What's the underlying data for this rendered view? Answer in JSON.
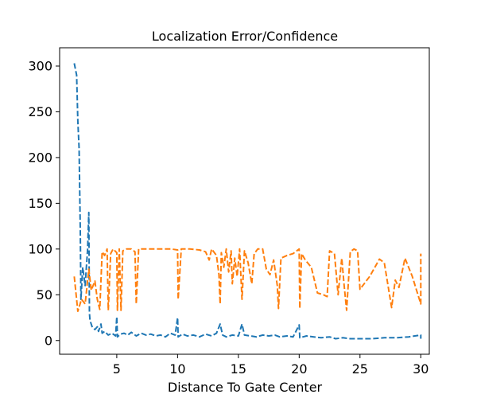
{
  "chart_data": {
    "type": "line",
    "title": "Localization Error/Confidence",
    "xlabel": "Distance To Gate Center",
    "ylabel": "",
    "xlim": [
      0.3,
      30.7
    ],
    "ylim": [
      -15,
      320
    ],
    "xticks": [
      5,
      10,
      15,
      20,
      25,
      30
    ],
    "yticks": [
      0,
      50,
      100,
      150,
      200,
      250,
      300
    ],
    "grid": false,
    "legend": null,
    "line_style": "dashed",
    "series": [
      {
        "color": "#1f77b4",
        "points": [
          [
            1.5,
            303
          ],
          [
            1.7,
            290
          ],
          [
            1.8,
            240
          ],
          [
            1.9,
            210
          ],
          [
            2.0,
            120
          ],
          [
            2.05,
            45
          ],
          [
            2.2,
            80
          ],
          [
            2.4,
            60
          ],
          [
            2.6,
            100
          ],
          [
            2.7,
            140
          ],
          [
            2.75,
            30
          ],
          [
            2.8,
            22
          ],
          [
            3.0,
            14
          ],
          [
            3.2,
            12
          ],
          [
            3.4,
            15
          ],
          [
            3.5,
            10
          ],
          [
            3.7,
            18
          ],
          [
            3.8,
            8
          ],
          [
            4.0,
            10
          ],
          [
            4.3,
            6
          ],
          [
            4.6,
            8
          ],
          [
            4.9,
            5
          ],
          [
            5.0,
            26
          ],
          [
            5.05,
            4
          ],
          [
            5.3,
            7
          ],
          [
            5.6,
            8
          ],
          [
            5.9,
            6
          ],
          [
            6.2,
            9
          ],
          [
            6.6,
            5
          ],
          [
            7.0,
            8
          ],
          [
            7.4,
            6
          ],
          [
            7.8,
            7
          ],
          [
            8.2,
            5
          ],
          [
            8.6,
            6
          ],
          [
            9.0,
            4
          ],
          [
            9.4,
            8
          ],
          [
            9.8,
            6
          ],
          [
            10.0,
            25
          ],
          [
            10.05,
            4
          ],
          [
            10.4,
            7
          ],
          [
            10.8,
            5
          ],
          [
            11.3,
            6
          ],
          [
            11.8,
            4
          ],
          [
            12.3,
            7
          ],
          [
            12.8,
            5
          ],
          [
            13.2,
            8
          ],
          [
            13.5,
            18
          ],
          [
            13.7,
            6
          ],
          [
            14.0,
            4
          ],
          [
            14.5,
            6
          ],
          [
            15.0,
            5
          ],
          [
            15.3,
            18
          ],
          [
            15.5,
            6
          ],
          [
            16.0,
            5
          ],
          [
            16.5,
            4
          ],
          [
            17.0,
            6
          ],
          [
            17.5,
            5
          ],
          [
            18.0,
            6
          ],
          [
            18.4,
            4
          ],
          [
            19.0,
            5
          ],
          [
            19.5,
            4
          ],
          [
            20.0,
            17
          ],
          [
            20.05,
            3
          ],
          [
            20.6,
            5
          ],
          [
            21.2,
            4
          ],
          [
            21.8,
            3
          ],
          [
            22.5,
            4
          ],
          [
            23.0,
            2
          ],
          [
            23.6,
            3
          ],
          [
            24.2,
            2
          ],
          [
            25.0,
            2
          ],
          [
            26.0,
            2
          ],
          [
            27.0,
            3
          ],
          [
            28.0,
            3
          ],
          [
            29.0,
            4
          ],
          [
            30.0,
            6
          ],
          [
            30.0,
            2
          ]
        ]
      },
      {
        "color": "#ff7f0e",
        "points": [
          [
            1.5,
            70
          ],
          [
            1.8,
            32
          ],
          [
            2.1,
            45
          ],
          [
            2.4,
            40
          ],
          [
            2.7,
            78
          ],
          [
            2.9,
            55
          ],
          [
            3.2,
            65
          ],
          [
            3.4,
            45
          ],
          [
            3.6,
            34
          ],
          [
            3.8,
            97
          ],
          [
            4.0,
            93
          ],
          [
            4.2,
            100
          ],
          [
            4.3,
            33
          ],
          [
            4.5,
            95
          ],
          [
            4.7,
            100
          ],
          [
            5.0,
            96
          ],
          [
            5.05,
            33
          ],
          [
            5.2,
            100
          ],
          [
            5.35,
            33
          ],
          [
            5.5,
            98
          ],
          [
            5.8,
            100
          ],
          [
            6.2,
            100
          ],
          [
            6.5,
            97
          ],
          [
            6.6,
            40
          ],
          [
            6.8,
            100
          ],
          [
            7.5,
            100
          ],
          [
            8.5,
            100
          ],
          [
            9.5,
            100
          ],
          [
            10.0,
            99
          ],
          [
            10.05,
            45
          ],
          [
            10.3,
            100
          ],
          [
            11.0,
            100
          ],
          [
            11.8,
            99
          ],
          [
            12.3,
            97
          ],
          [
            12.6,
            88
          ],
          [
            12.8,
            100
          ],
          [
            13.2,
            93
          ],
          [
            13.4,
            72
          ],
          [
            13.5,
            40
          ],
          [
            13.6,
            96
          ],
          [
            13.8,
            80
          ],
          [
            14.0,
            100
          ],
          [
            14.2,
            75
          ],
          [
            14.4,
            98
          ],
          [
            14.5,
            62
          ],
          [
            14.7,
            90
          ],
          [
            14.9,
            70
          ],
          [
            15.1,
            100
          ],
          [
            15.3,
            45
          ],
          [
            15.5,
            98
          ],
          [
            15.8,
            85
          ],
          [
            16.1,
            62
          ],
          [
            16.3,
            95
          ],
          [
            16.6,
            100
          ],
          [
            17.0,
            100
          ],
          [
            17.3,
            78
          ],
          [
            17.6,
            72
          ],
          [
            17.9,
            88
          ],
          [
            18.2,
            60
          ],
          [
            18.3,
            35
          ],
          [
            18.5,
            90
          ],
          [
            19.0,
            93
          ],
          [
            19.5,
            95
          ],
          [
            20.0,
            100
          ],
          [
            20.05,
            35
          ],
          [
            20.2,
            95
          ],
          [
            20.5,
            88
          ],
          [
            21.0,
            80
          ],
          [
            21.5,
            52
          ],
          [
            22.0,
            50
          ],
          [
            22.3,
            48
          ],
          [
            22.5,
            98
          ],
          [
            22.9,
            95
          ],
          [
            23.2,
            50
          ],
          [
            23.5,
            90
          ],
          [
            23.7,
            60
          ],
          [
            23.9,
            33
          ],
          [
            24.2,
            97
          ],
          [
            24.5,
            100
          ],
          [
            24.8,
            98
          ],
          [
            25.0,
            56
          ],
          [
            25.8,
            70
          ],
          [
            26.6,
            89
          ],
          [
            27.0,
            85
          ],
          [
            27.6,
            36
          ],
          [
            27.9,
            66
          ],
          [
            28.2,
            58
          ],
          [
            28.7,
            90
          ],
          [
            29.3,
            70
          ],
          [
            30.0,
            40
          ],
          [
            30.0,
            95
          ]
        ]
      }
    ]
  }
}
